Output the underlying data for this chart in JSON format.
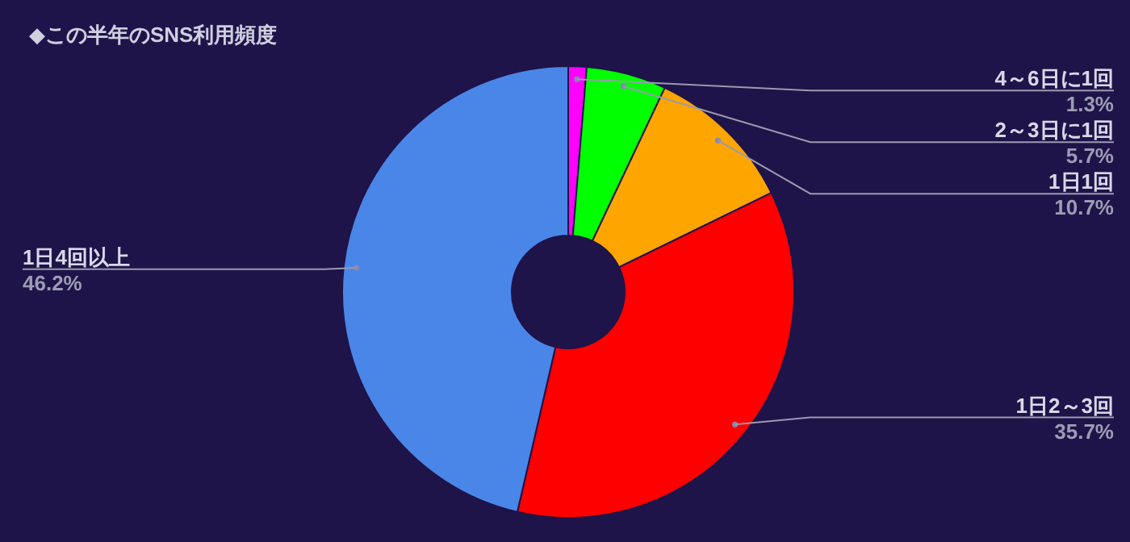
{
  "chart_data": {
    "type": "donut",
    "title": "◆この半年のSNS利用頻度",
    "categories": [
      "4～6日に1回",
      "2～3日に1回",
      "1日1回",
      "1日2～3回",
      "1日4回以上"
    ],
    "values": [
      1.3,
      5.7,
      10.7,
      35.7,
      46.2
    ],
    "colors": [
      "#ff00ff",
      "#00ff00",
      "#ffa500",
      "#ff0000",
      "#4a86e8"
    ],
    "value_labels": [
      "1.3%",
      "5.7%",
      "10.7%",
      "35.7%",
      "46.2%"
    ]
  }
}
